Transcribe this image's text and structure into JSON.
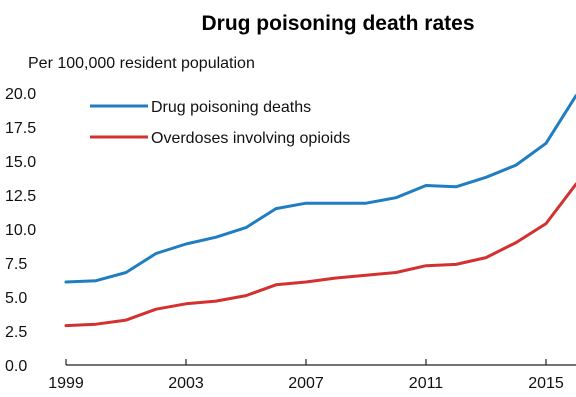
{
  "chart_data": {
    "type": "line",
    "title": "Drug poisoning death rates",
    "ylabel": "Per 100,000 resident population",
    "xlabel": "",
    "xlim": [
      1999,
      2016
    ],
    "ylim": [
      0,
      20
    ],
    "y_ticks": [
      "0.0",
      "2.5",
      "5.0",
      "7.5",
      "10.0",
      "12.5",
      "15.0",
      "17.5",
      "20.0"
    ],
    "x_ticks": [
      "1999",
      "2003",
      "2007",
      "2011",
      "2015"
    ],
    "grid": false,
    "legend_position": "top-left",
    "x": [
      1999,
      2000,
      2001,
      2002,
      2003,
      2004,
      2005,
      2006,
      2007,
      2008,
      2009,
      2010,
      2011,
      2012,
      2013,
      2014,
      2015,
      2016
    ],
    "series": [
      {
        "name": "Drug poisoning deaths",
        "color": "#1f7ec1",
        "values": [
          6.1,
          6.2,
          6.8,
          8.2,
          8.9,
          9.4,
          10.1,
          11.5,
          11.9,
          11.9,
          11.9,
          12.3,
          13.2,
          13.1,
          13.8,
          14.7,
          16.3,
          19.8
        ]
      },
      {
        "name": "Overdoses involving opioids",
        "color": "#d3312f",
        "values": [
          2.9,
          3.0,
          3.3,
          4.1,
          4.5,
          4.7,
          5.1,
          5.9,
          6.1,
          6.4,
          6.6,
          6.8,
          7.3,
          7.4,
          7.9,
          9.0,
          10.4,
          13.3
        ]
      }
    ]
  }
}
